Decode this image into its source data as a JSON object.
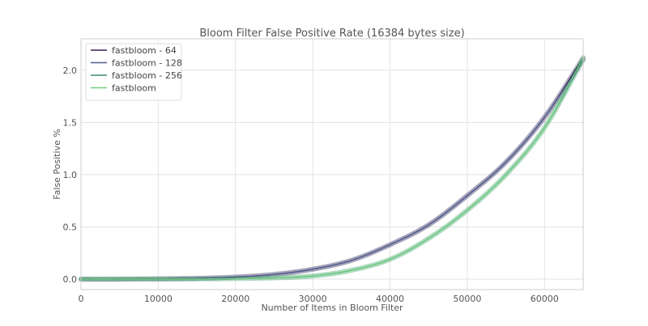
{
  "chart_data": {
    "type": "line",
    "title": "Bloom Filter False Positive Rate (16384 bytes size)",
    "xlabel": "Number of Items in Bloom Filter",
    "ylabel": "False Positive %",
    "xlim": [
      0,
      65000
    ],
    "ylim": [
      -0.1,
      2.3
    ],
    "xticks": [
      0,
      10000,
      20000,
      30000,
      40000,
      50000,
      60000
    ],
    "yticks": [
      0.0,
      0.5,
      1.0,
      1.5,
      2.0
    ],
    "xtick_labels": [
      "0",
      "10000",
      "20000",
      "30000",
      "40000",
      "50000",
      "60000"
    ],
    "ytick_labels": [
      "0.0",
      "0.5",
      "1.0",
      "1.5",
      "2.0"
    ],
    "grid": true,
    "legend_position": "top-left",
    "x": [
      0,
      5000,
      10000,
      15000,
      20000,
      25000,
      30000,
      35000,
      40000,
      45000,
      50000,
      55000,
      60000,
      65000
    ],
    "series": [
      {
        "name": "fastbloom - 64",
        "color": "#3b1f4f",
        "values": [
          0,
          0.0002,
          0.003,
          0.008,
          0.02,
          0.045,
          0.095,
          0.18,
          0.33,
          0.52,
          0.8,
          1.12,
          1.55,
          2.12
        ]
      },
      {
        "name": "fastbloom - 128",
        "color": "#4f5f8f",
        "values": [
          0,
          0.0002,
          0.003,
          0.008,
          0.02,
          0.045,
          0.095,
          0.18,
          0.33,
          0.52,
          0.8,
          1.12,
          1.55,
          2.1
        ]
      },
      {
        "name": "fastbloom - 256",
        "color": "#3a8a72",
        "values": [
          0,
          0.0001,
          0.0005,
          0.002,
          0.006,
          0.012,
          0.03,
          0.085,
          0.19,
          0.39,
          0.66,
          1.0,
          1.45,
          2.1
        ]
      },
      {
        "name": "fastbloom",
        "color": "#6fcf7f",
        "values": [
          0,
          0.0001,
          0.0005,
          0.002,
          0.006,
          0.012,
          0.03,
          0.085,
          0.19,
          0.39,
          0.66,
          1.0,
          1.45,
          2.12
        ]
      }
    ]
  }
}
